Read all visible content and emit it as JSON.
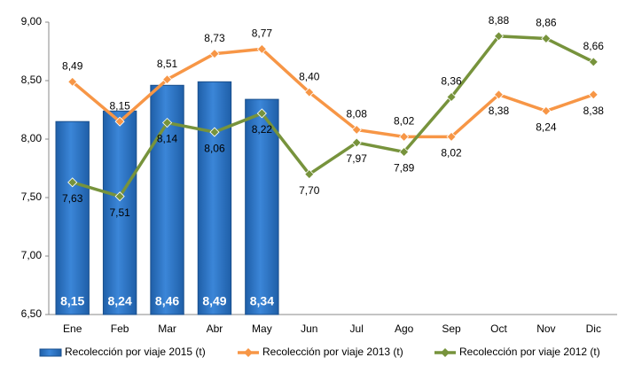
{
  "chart_data": {
    "type": "bar",
    "categories": [
      "Ene",
      "Feb",
      "Mar",
      "Abr",
      "May",
      "Jun",
      "Jul",
      "Ago",
      "Sep",
      "Oct",
      "Nov",
      "Dic"
    ],
    "series": [
      {
        "name": "Recolección por viaje 2015 (t)",
        "type": "bar",
        "color": "#2f74c4",
        "values": [
          8.15,
          8.24,
          8.46,
          8.49,
          8.34,
          null,
          null,
          null,
          null,
          null,
          null,
          null
        ],
        "value_labels": [
          "8,15",
          "8,24",
          "8,46",
          "8,49",
          "8,34",
          null,
          null,
          null,
          null,
          null,
          null,
          null
        ]
      },
      {
        "name": "Recolección por viaje 2013 (t)",
        "type": "line",
        "color": "#f79646",
        "values": [
          8.49,
          8.15,
          8.51,
          8.73,
          8.77,
          8.4,
          8.08,
          8.02,
          8.02,
          8.38,
          8.24,
          8.38
        ],
        "value_labels": [
          "8,49",
          "8,15",
          "8,51",
          "8,73",
          "8,77",
          "8,40",
          "8,08",
          "8,02",
          "8,02",
          "8,38",
          "8,24",
          "8,38"
        ]
      },
      {
        "name": "Recolección por viaje 2012 (t)",
        "type": "line",
        "color": "#77933c",
        "values": [
          7.63,
          7.51,
          8.14,
          8.06,
          8.22,
          7.7,
          7.97,
          7.89,
          8.36,
          8.88,
          8.86,
          8.66
        ],
        "value_labels": [
          "7,63",
          "7,51",
          "8,14",
          "8,06",
          "8,22",
          "7,70",
          "7,97",
          "7,89",
          "8,36",
          "8,88",
          "8,86",
          "8,66"
        ]
      }
    ],
    "ylim": [
      6.5,
      9.0
    ],
    "yticks": [
      {
        "value": 6.5,
        "label": "6,50"
      },
      {
        "value": 7.0,
        "label": "7,00"
      },
      {
        "value": 7.5,
        "label": "7,50"
      },
      {
        "value": 8.0,
        "label": "8,00"
      },
      {
        "value": 8.5,
        "label": "8,50"
      },
      {
        "value": 9.0,
        "label": "9,00"
      }
    ],
    "grid": false,
    "legend": "bottom"
  }
}
